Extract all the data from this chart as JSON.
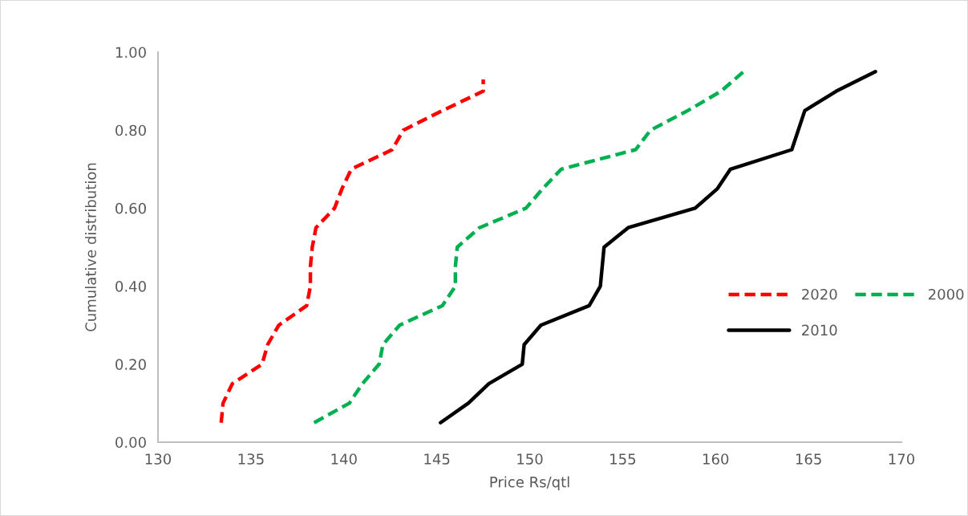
{
  "chart_data": {
    "type": "line",
    "xlabel": "Price Rs/qtl",
    "ylabel": "Cumulative distribution",
    "xlim": [
      130,
      170
    ],
    "xticks": [
      130,
      135,
      140,
      145,
      150,
      155,
      160,
      165,
      170
    ],
    "ylim": [
      0,
      1.0
    ],
    "yticks": [
      {
        "value": 0,
        "label": "0.00"
      },
      {
        "value": 0.2,
        "label": "0.20"
      },
      {
        "value": 0.4,
        "label": "0.40"
      },
      {
        "value": 0.6,
        "label": "0.60"
      },
      {
        "value": 0.8,
        "label": "0.80"
      },
      {
        "value": 1.0,
        "label": "1.00"
      }
    ],
    "grid": false,
    "legend": "right",
    "marker": "none",
    "series": [
      {
        "name": "2020",
        "color": "#ff0000",
        "line_style": "dashed",
        "x": [
          133.4,
          133.5,
          134.0,
          135.6,
          135.9,
          136.5,
          138.0,
          138.2,
          138.2,
          138.3,
          138.5,
          139.5,
          139.9,
          140.4,
          142.6,
          143.2,
          145.3,
          147.5,
          147.5
        ],
        "values": [
          0.05,
          0.1,
          0.15,
          0.2,
          0.25,
          0.3,
          0.35,
          0.4,
          0.45,
          0.5,
          0.55,
          0.6,
          0.65,
          0.7,
          0.75,
          0.8,
          0.85,
          0.9,
          0.93
        ]
      },
      {
        "name": "2010",
        "color": "#000000",
        "line_style": "solid",
        "x": [
          145.2,
          146.7,
          147.8,
          149.6,
          149.7,
          150.6,
          153.2,
          153.8,
          154.0,
          155.3,
          158.9,
          160.1,
          160.8,
          164.1,
          164.8,
          166.5,
          168.6
        ],
        "values": [
          0.05,
          0.1,
          0.15,
          0.2,
          0.25,
          0.3,
          0.35,
          0.4,
          0.5,
          0.55,
          0.6,
          0.65,
          0.7,
          0.75,
          0.85,
          0.9,
          0.95
        ]
      },
      {
        "name": "2000",
        "color": "#00b050",
        "line_style": "dashed",
        "x": [
          138.4,
          140.3,
          141.0,
          141.9,
          142.1,
          143.0,
          145.3,
          146.0,
          146.0,
          146.1,
          147.3,
          149.8,
          150.7,
          151.7,
          155.7,
          156.5,
          158.5,
          160.3,
          161.5
        ],
        "values": [
          0.05,
          0.1,
          0.15,
          0.2,
          0.25,
          0.3,
          0.35,
          0.4,
          0.45,
          0.5,
          0.55,
          0.6,
          0.65,
          0.7,
          0.75,
          0.8,
          0.85,
          0.9,
          0.95
        ]
      }
    ]
  }
}
